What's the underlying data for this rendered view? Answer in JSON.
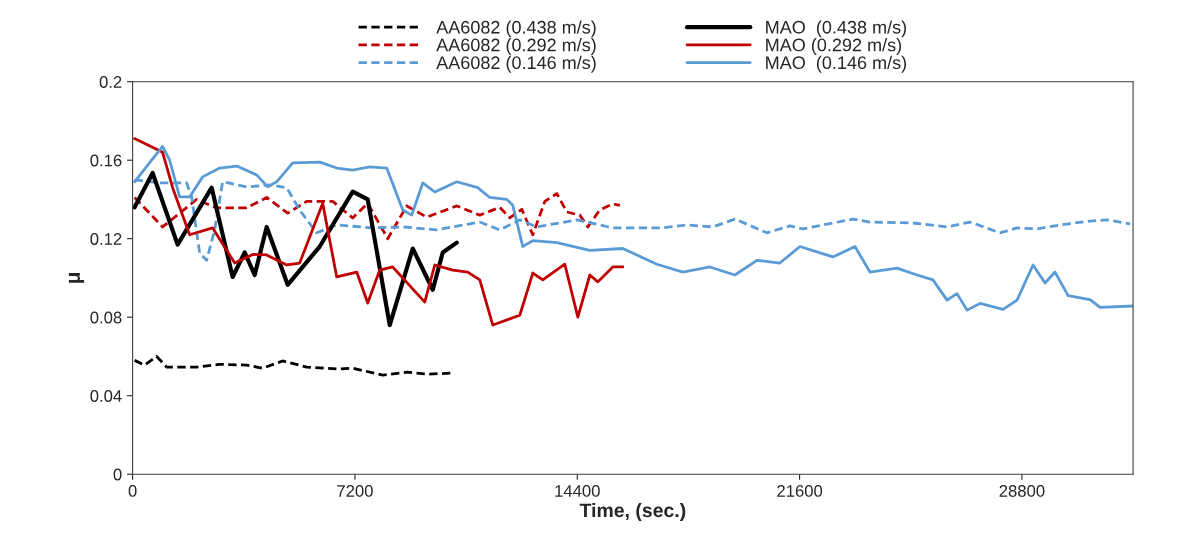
{
  "chart_data": {
    "type": "line",
    "xlabel": "Time, (sec.)",
    "ylabel": "μ",
    "xlim": [
      0,
      32400
    ],
    "xticks": [
      0,
      7200,
      14400,
      21600,
      28800
    ],
    "ylim": [
      0,
      0.2
    ],
    "yticks": [
      0,
      0.04,
      0.08,
      0.12,
      0.16,
      0.2
    ],
    "grid": false,
    "legend": "top",
    "marker": "none",
    "series": [
      {
        "name": "AA6082 (0.438 m/s)",
        "color": "#000000",
        "line_style": "dashed",
        "x": [
          65,
          389,
          778,
          1102,
          2074,
          2819,
          3694,
          4212,
          4860,
          5638,
          6610,
          7128,
          8100,
          8878,
          9526,
          10368
        ],
        "values": [
          0.058,
          0.0556,
          0.06,
          0.0546,
          0.0546,
          0.056,
          0.0556,
          0.054,
          0.0577,
          0.0546,
          0.0536,
          0.054,
          0.0505,
          0.052,
          0.051,
          0.0515
        ]
      },
      {
        "name": "AA6082 (0.292 m/s)",
        "color": "#c00000",
        "line_style": "dashed",
        "x": [
          65,
          972,
          2074,
          2722,
          3694,
          4342,
          5022,
          5638,
          6480,
          7128,
          7614,
          8262,
          8878,
          9526,
          10498,
          11243,
          11891,
          12215,
          12604,
          12960,
          13349,
          13738,
          14062,
          14483,
          14742,
          15131,
          15552,
          15779
        ],
        "values": [
          0.141,
          0.126,
          0.14,
          0.1357,
          0.1357,
          0.141,
          0.133,
          0.139,
          0.139,
          0.1306,
          0.138,
          0.12,
          0.1367,
          0.131,
          0.1367,
          0.132,
          0.136,
          0.1306,
          0.135,
          0.122,
          0.139,
          0.143,
          0.1336,
          0.132,
          0.126,
          0.1347,
          0.1377,
          0.137
        ]
      },
      {
        "name": "AA6082 (0.146 m/s)",
        "color": "#5b9bd5",
        "line_style": "dashed",
        "x": [
          65,
          875,
          1750,
          1912,
          2171,
          2398,
          2657,
          2916,
          3694,
          4439,
          4990,
          5411,
          5962,
          6610,
          7776,
          8748,
          9850,
          11243,
          11891,
          12539,
          13090,
          14386,
          15552,
          17172,
          17950,
          18792,
          19505,
          20542,
          21287,
          21708,
          23328,
          23879,
          25272,
          26374,
          27119,
          28091,
          28642,
          29290,
          30035,
          31007,
          31558,
          32303
        ],
        "values": [
          0.15,
          0.1484,
          0.1484,
          0.1413,
          0.1127,
          0.109,
          0.1245,
          0.149,
          0.1464,
          0.1474,
          0.146,
          0.1346,
          0.123,
          0.127,
          0.1255,
          0.126,
          0.1245,
          0.1285,
          0.1245,
          0.1296,
          0.126,
          0.1296,
          0.1255,
          0.1255,
          0.127,
          0.126,
          0.13,
          0.123,
          0.1265,
          0.125,
          0.13,
          0.1285,
          0.128,
          0.126,
          0.1285,
          0.123,
          0.1255,
          0.125,
          0.127,
          0.129,
          0.1296,
          0.1275
        ]
      },
      {
        "name": "MAO  (0.438 m/s)",
        "color": "#000000",
        "line_style": "solid",
        "x": [
          65,
          648,
          1458,
          2560,
          3240,
          3629,
          3953,
          4342,
          5022,
          6059,
          7128,
          7614,
          8327,
          9072,
          9720,
          10044,
          10498
        ],
        "values": [
          0.136,
          0.1535,
          0.117,
          0.146,
          0.1005,
          0.113,
          0.1015,
          0.126,
          0.0965,
          0.116,
          0.144,
          0.14,
          0.076,
          0.115,
          0.094,
          0.113,
          0.118
        ]
      },
      {
        "name": "MAO (0.292 m/s)",
        "color": "#c00000",
        "line_style": "solid",
        "x": [
          65,
          972,
          1296,
          1847,
          2592,
          3305,
          3888,
          4342,
          4990,
          5411,
          6156,
          6610,
          7258,
          7614,
          8003,
          8424,
          9461,
          9785,
          10368,
          10854,
          11243,
          11664,
          12539,
          12960,
          13284,
          13997,
          14418,
          14807,
          15066,
          15552,
          15876
        ],
        "values": [
          0.171,
          0.164,
          0.146,
          0.122,
          0.1255,
          0.1076,
          0.112,
          0.1117,
          0.1066,
          0.1076,
          0.138,
          0.1005,
          0.103,
          0.0872,
          0.104,
          0.1056,
          0.0877,
          0.1066,
          0.104,
          0.103,
          0.099,
          0.076,
          0.081,
          0.1025,
          0.099,
          0.107,
          0.08,
          0.1015,
          0.098,
          0.1056,
          0.1056
        ]
      },
      {
        "name": "MAO  (0.146 m/s)",
        "color": "#5b9bd5",
        "line_style": "solid",
        "x": [
          65,
          616,
          972,
          1199,
          1523,
          1847,
          2268,
          2819,
          3370,
          4018,
          4374,
          4666,
          5184,
          6059,
          6610,
          7128,
          7679,
          8230,
          8748,
          9040,
          9396,
          9785,
          10498,
          11178,
          11567,
          12118,
          12312,
          12636,
          12960,
          13738,
          14807,
          15876,
          16978,
          17820,
          18695,
          19505,
          20218,
          20963,
          21611,
          22680,
          23393,
          23879,
          24754,
          25402,
          25920,
          26374,
          26698,
          27022,
          27443,
          28188,
          28642,
          29160,
          29549,
          29873,
          30294,
          31007,
          31331,
          32400
        ],
        "values": [
          0.149,
          0.16,
          0.167,
          0.16,
          0.1413,
          0.1413,
          0.1515,
          0.156,
          0.157,
          0.1525,
          0.1464,
          0.149,
          0.1586,
          0.159,
          0.156,
          0.155,
          0.1566,
          0.156,
          0.1346,
          0.132,
          0.1484,
          0.1438,
          0.149,
          0.146,
          0.141,
          0.14,
          0.137,
          0.116,
          0.119,
          0.118,
          0.114,
          0.115,
          0.107,
          0.103,
          0.1056,
          0.1015,
          0.109,
          0.1076,
          0.116,
          0.1107,
          0.116,
          0.103,
          0.105,
          0.1015,
          0.099,
          0.0887,
          0.092,
          0.0836,
          0.087,
          0.084,
          0.0887,
          0.1066,
          0.0974,
          0.103,
          0.091,
          0.089,
          0.085,
          0.0857
        ]
      }
    ]
  }
}
